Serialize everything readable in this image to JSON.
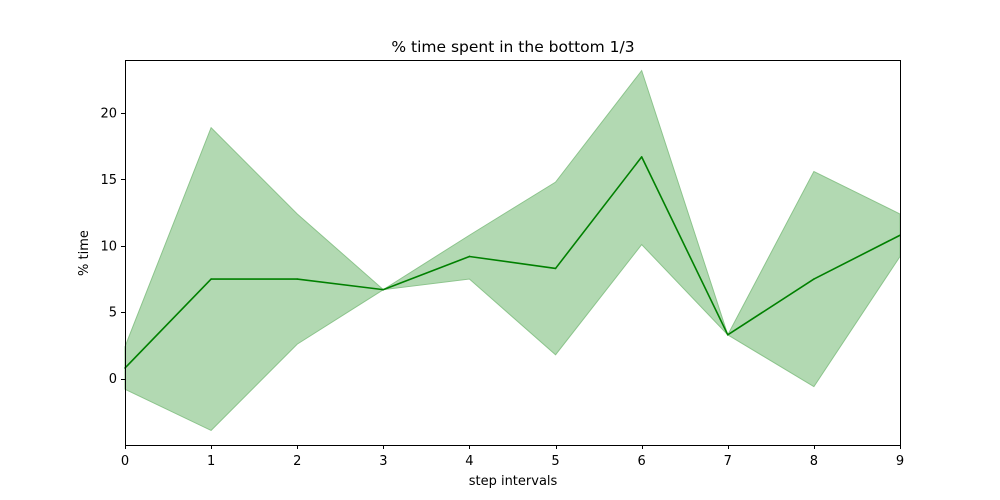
{
  "chart_data": {
    "type": "line",
    "title": "% time spent in the bottom 1/3",
    "xlabel": "step intervals",
    "ylabel": "% time",
    "x": [
      0,
      1,
      2,
      3,
      4,
      5,
      6,
      7,
      8,
      9
    ],
    "xlim": [
      0,
      9
    ],
    "ylim": [
      -5,
      24
    ],
    "xticks": [
      0,
      1,
      2,
      3,
      4,
      5,
      6,
      7,
      8,
      9
    ],
    "yticks": [
      0,
      5,
      10,
      15,
      20
    ],
    "grid": false,
    "legend": "none",
    "series": [
      {
        "values": [
          0.8,
          7.5,
          7.5,
          6.7,
          9.2,
          8.3,
          16.7,
          3.3,
          7.5,
          10.8
        ],
        "lower": [
          -0.8,
          -3.9,
          2.6,
          6.7,
          7.5,
          1.8,
          10.1,
          3.3,
          -0.6,
          9.2
        ],
        "upper": [
          2.4,
          18.9,
          12.4,
          6.7,
          10.8,
          14.8,
          23.2,
          3.3,
          15.6,
          12.4
        ],
        "color": "#008000",
        "band_color": "#b2d9b2",
        "band_edge_color": "#8cc48c"
      }
    ]
  }
}
